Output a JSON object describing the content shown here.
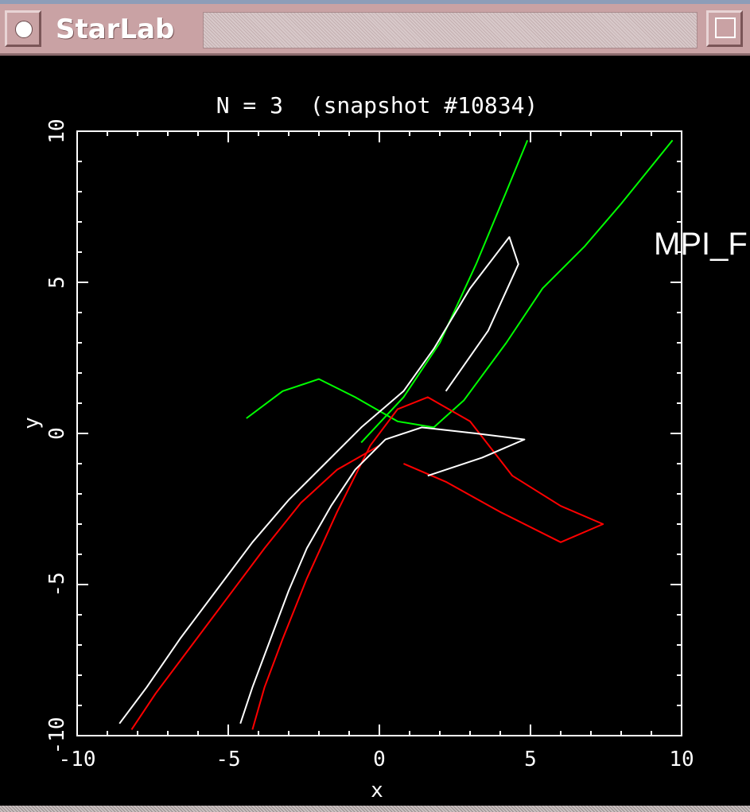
{
  "window": {
    "title": "StarLab",
    "menu_icon": "circle-dot-icon",
    "maximize_icon": "maximize-icon"
  },
  "overlay_label": "MPI_F",
  "colors": {
    "titlebar": "#c9a2a4",
    "background": "#000000",
    "frame": "#ffffff",
    "particle_1": "#ffffff",
    "particle_2": "#ff0000",
    "particle_3": "#00ff00"
  },
  "chart_data": {
    "type": "line",
    "title": "N = 3  (snapshot #10834)",
    "xlabel": "x",
    "ylabel": "y",
    "xlim": [
      -10,
      10
    ],
    "ylim": [
      -10,
      10
    ],
    "xticks": [
      "-10",
      "-5",
      "0",
      "5",
      "10"
    ],
    "yticks": [
      "-10",
      "-5",
      "0",
      "5",
      "10"
    ],
    "grid": false,
    "legend": "none",
    "series": [
      {
        "color": "#00ff00",
        "points": [
          [
            -4.4,
            0.5
          ],
          [
            -3.2,
            1.4
          ],
          [
            -2.0,
            1.8
          ],
          [
            -0.8,
            1.2
          ],
          [
            0.6,
            0.4
          ],
          [
            1.8,
            0.2
          ],
          [
            2.8,
            1.1
          ],
          [
            4.2,
            3.0
          ],
          [
            5.4,
            4.8
          ],
          [
            6.8,
            6.2
          ],
          [
            8.0,
            7.6
          ],
          [
            9.7,
            9.7
          ]
        ]
      },
      {
        "color": "#00ff00",
        "points": [
          [
            -0.6,
            -0.3
          ],
          [
            0.8,
            1.2
          ],
          [
            2.0,
            3.0
          ],
          [
            3.2,
            5.6
          ],
          [
            4.2,
            8.0
          ],
          [
            4.9,
            9.7
          ]
        ]
      },
      {
        "color": "#ff0000",
        "points": [
          [
            -4.2,
            -9.8
          ],
          [
            -3.8,
            -8.4
          ],
          [
            -3.2,
            -6.8
          ],
          [
            -2.4,
            -4.8
          ],
          [
            -1.4,
            -2.6
          ],
          [
            -0.3,
            -0.4
          ],
          [
            0.6,
            0.8
          ],
          [
            1.6,
            1.2
          ],
          [
            3.0,
            0.4
          ],
          [
            4.4,
            -1.4
          ],
          [
            6.0,
            -2.4
          ],
          [
            7.4,
            -3.0
          ],
          [
            6.0,
            -3.6
          ],
          [
            4.0,
            -2.6
          ],
          [
            2.2,
            -1.6
          ],
          [
            0.8,
            -1.0
          ]
        ]
      },
      {
        "color": "#ff0000",
        "points": [
          [
            -8.2,
            -9.8
          ],
          [
            -7.4,
            -8.6
          ],
          [
            -6.2,
            -7.0
          ],
          [
            -5.0,
            -5.4
          ],
          [
            -3.8,
            -3.8
          ],
          [
            -2.6,
            -2.3
          ],
          [
            -1.4,
            -1.2
          ],
          [
            0.0,
            -0.4
          ]
        ]
      },
      {
        "color": "#ffffff",
        "points": [
          [
            -8.6,
            -9.6
          ],
          [
            -7.7,
            -8.4
          ],
          [
            -6.6,
            -6.8
          ],
          [
            -5.4,
            -5.2
          ],
          [
            -4.2,
            -3.6
          ],
          [
            -3.0,
            -2.2
          ],
          [
            -1.8,
            -1.0
          ],
          [
            -0.6,
            0.2
          ],
          [
            0.8,
            1.4
          ],
          [
            1.8,
            2.8
          ],
          [
            3.0,
            4.8
          ],
          [
            4.3,
            6.5
          ],
          [
            4.6,
            5.6
          ],
          [
            3.6,
            3.4
          ],
          [
            2.2,
            1.4
          ]
        ]
      },
      {
        "color": "#ffffff",
        "points": [
          [
            -4.6,
            -9.6
          ],
          [
            -4.2,
            -8.4
          ],
          [
            -3.6,
            -6.8
          ],
          [
            -3.0,
            -5.2
          ],
          [
            -2.4,
            -3.8
          ],
          [
            -1.6,
            -2.4
          ],
          [
            -0.8,
            -1.2
          ],
          [
            0.2,
            -0.2
          ],
          [
            1.4,
            0.2
          ],
          [
            3.2,
            0.0
          ],
          [
            4.8,
            -0.2
          ],
          [
            3.4,
            -0.8
          ],
          [
            1.6,
            -1.4
          ]
        ]
      }
    ]
  }
}
